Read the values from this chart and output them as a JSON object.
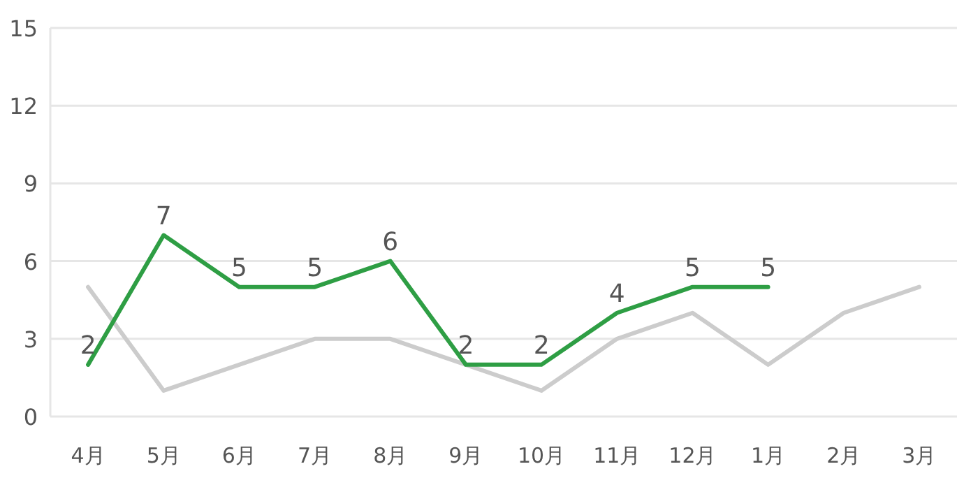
{
  "chart_data": {
    "type": "line",
    "categories": [
      "4月",
      "5月",
      "6月",
      "7月",
      "8月",
      "9月",
      "10月",
      "11月",
      "12月",
      "1月",
      "2月",
      "3月"
    ],
    "series": [
      {
        "color": "#cccccc",
        "values": [
          5,
          1,
          2,
          3,
          3,
          2,
          1,
          3,
          4,
          2,
          4,
          5
        ]
      },
      {
        "color": "#2e9e44",
        "values": [
          2,
          7,
          5,
          5,
          6,
          2,
          2,
          4,
          5,
          5,
          null,
          null
        ],
        "value_labels": [
          "2",
          "7",
          "5",
          "5",
          "6",
          "2",
          "2",
          "4",
          "5",
          "5",
          null,
          null
        ]
      }
    ],
    "ylim": [
      0,
      15
    ],
    "yticks": [
      0,
      3,
      6,
      9,
      12,
      15
    ],
    "grid": "y"
  }
}
